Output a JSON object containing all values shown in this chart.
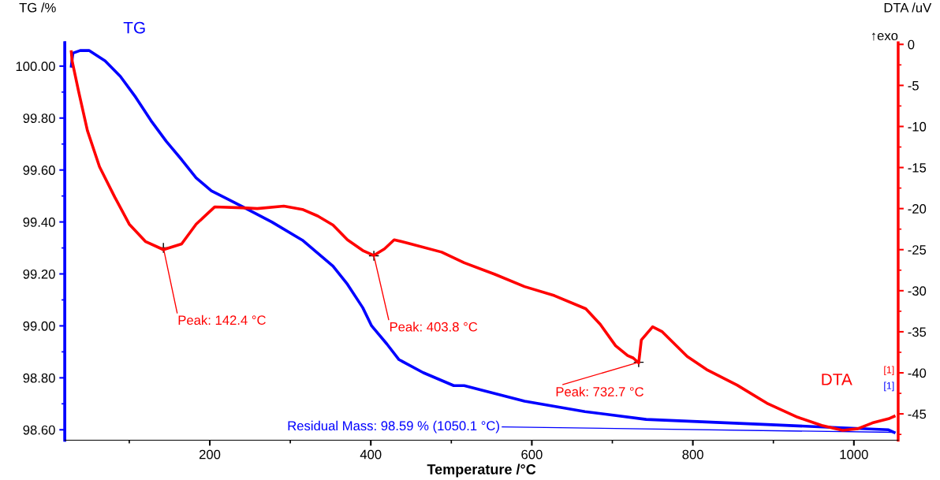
{
  "chart_data": {
    "type": "line",
    "xlabel": "Temperature /°C",
    "ylabel": "TG /%",
    "y2label": "DTA /uV",
    "xlim": [
      20,
      1055
    ],
    "xticks": [
      {
        "value": 100,
        "label": null
      },
      200,
      {
        "value": 300,
        "label": null
      },
      400,
      {
        "value": 500,
        "label": null
      },
      600,
      {
        "value": 700,
        "label": null
      },
      800,
      {
        "value": 900,
        "label": null
      },
      1000
    ],
    "ylim": [
      98.56,
      100.09
    ],
    "yticks": [
      {
        "value": 98.6,
        "label": "98.60"
      },
      {
        "value": 98.7,
        "label": null
      },
      {
        "value": 98.8,
        "label": "98.80"
      },
      {
        "value": 98.9,
        "label": null
      },
      {
        "value": 99.0,
        "label": "99.00"
      },
      {
        "value": 99.1,
        "label": null
      },
      {
        "value": 99.2,
        "label": "99.20"
      },
      {
        "value": 99.3,
        "label": null
      },
      {
        "value": 99.4,
        "label": "99.40"
      },
      {
        "value": 99.5,
        "label": null
      },
      {
        "value": 99.6,
        "label": "99.60"
      },
      {
        "value": 99.7,
        "label": null
      },
      {
        "value": 99.8,
        "label": "99.80"
      },
      {
        "value": 99.9,
        "label": null
      },
      {
        "value": 100.0,
        "label": "100.00"
      }
    ],
    "y2lim": [
      -48.2,
      0.2
    ],
    "y2ticks": [
      0,
      {
        "value": -2.5,
        "label": null
      },
      -5,
      {
        "value": -7.5,
        "label": null
      },
      -10,
      {
        "value": -12.5,
        "label": null
      },
      -15,
      {
        "value": -17.5,
        "label": null
      },
      -20,
      {
        "value": -22.5,
        "label": null
      },
      -25,
      {
        "value": -27.5,
        "label": null
      },
      -30,
      {
        "value": -32.5,
        "label": null
      },
      -35,
      {
        "value": -37.5,
        "label": null
      },
      -40,
      {
        "value": -42.5,
        "label": null
      },
      -45,
      {
        "value": -47.5,
        "label": null
      }
    ],
    "grid": false,
    "legend": false,
    "marker": "none",
    "line_style": "solid",
    "series": [
      {
        "name": "TG",
        "color": "#0000ff",
        "x": [
          28,
          30,
          39,
          50,
          70,
          89,
          108,
          127,
          146,
          165,
          183,
          202,
          240,
          277,
          315,
          334,
          353,
          371,
          390,
          401,
          420,
          435,
          465,
          503,
          516,
          591,
          666,
          742,
          817,
          892,
          967,
          1043,
          1050
        ],
        "values": [
          100.0,
          100.05,
          100.06,
          100.06,
          100.02,
          99.96,
          99.88,
          99.79,
          99.71,
          99.64,
          99.57,
          99.52,
          99.46,
          99.4,
          99.33,
          99.28,
          99.23,
          99.16,
          99.07,
          99.0,
          98.93,
          98.87,
          98.82,
          98.77,
          98.77,
          98.71,
          98.67,
          98.64,
          98.63,
          98.62,
          98.61,
          98.6,
          98.59
        ]
      },
      {
        "name": "DTA",
        "color": "#ff0000",
        "axis": "y2",
        "x": [
          28,
          29,
          37,
          48,
          63,
          82,
          100,
          120,
          142.4,
          165,
          183,
          206,
          240,
          259,
          292,
          315,
          334,
          353,
          371,
          390,
          403.8,
          417,
          429,
          446,
          488,
          516,
          554,
          591,
          628,
          667,
          685,
          704,
          719,
          726,
          732.7,
          736,
          750,
          762,
          793,
          817,
          855,
          892,
          930,
          960,
          986,
          1005,
          1023,
          1043,
          1050
        ],
        "values": [
          -0.9,
          -2.0,
          -5.7,
          -10.5,
          -14.9,
          -18.6,
          -21.9,
          -24.0,
          -25.0,
          -24.3,
          -21.9,
          -19.8,
          -19.9,
          -20.0,
          -19.7,
          -20.1,
          -20.9,
          -22.0,
          -23.8,
          -25.1,
          -25.7,
          -24.9,
          -23.8,
          -24.2,
          -25.3,
          -26.6,
          -28.0,
          -29.5,
          -30.6,
          -32.2,
          -34.1,
          -36.7,
          -37.9,
          -38.2,
          -38.8,
          -36.0,
          -34.4,
          -35.0,
          -38.0,
          -39.6,
          -41.5,
          -43.7,
          -45.4,
          -46.4,
          -47.0,
          -46.8,
          -46.1,
          -45.6,
          -45.3
        ]
      }
    ],
    "annotations": [
      "↑exo",
      {
        "text": "Peak: 142.4 °C",
        "x": 142.4,
        "y": 99.3
      },
      {
        "text": "Peak: 403.8 °C",
        "x": 403.8,
        "y": 99.27
      },
      {
        "text": "Peak: 732.7 °C",
        "x": 732.7,
        "y": 98.86
      },
      {
        "text": "Residual Mass: 98.59 % (1050.1 °C)",
        "x": 1050.1,
        "y": 98.59
      },
      "[1]",
      "[1]"
    ]
  }
}
